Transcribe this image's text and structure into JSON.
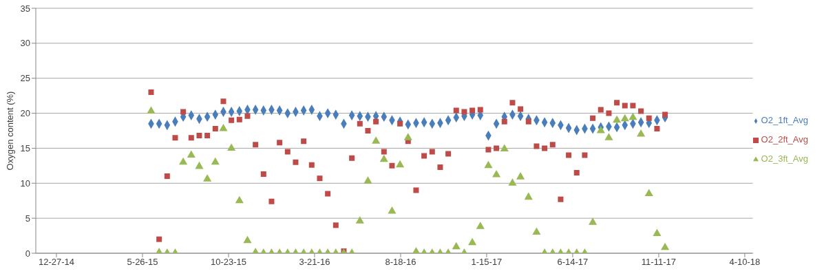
{
  "chart_data": {
    "type": "scatter",
    "ylabel": "Oxygen content (%)",
    "ylim": [
      0,
      35
    ],
    "yticks": [
      0,
      5,
      10,
      15,
      20,
      25,
      30,
      35
    ],
    "xlim": [
      "2014-11-21",
      "2018-04-24"
    ],
    "xticks": [
      {
        "value": "2014-12-27",
        "label": "12-27-14"
      },
      {
        "value": "2015-05-26",
        "label": "5-26-15"
      },
      {
        "value": "2015-10-23",
        "label": "10-23-15"
      },
      {
        "value": "2016-03-21",
        "label": "3-21-16"
      },
      {
        "value": "2016-08-18",
        "label": "8-18-16"
      },
      {
        "value": "2017-01-15",
        "label": "1-15-17"
      },
      {
        "value": "2017-06-14",
        "label": "6-14-17"
      },
      {
        "value": "2017-11-11",
        "label": "11-11-17"
      },
      {
        "value": "2018-04-10",
        "label": "4-10-18"
      }
    ],
    "grid": "y",
    "legend": "right",
    "x": [
      "2015-06-10",
      "2015-06-24",
      "2015-07-08",
      "2015-07-22",
      "2015-08-05",
      "2015-08-19",
      "2015-09-02",
      "2015-09-16",
      "2015-09-30",
      "2015-10-14",
      "2015-10-28",
      "2015-11-11",
      "2015-11-25",
      "2015-12-09",
      "2015-12-23",
      "2016-01-06",
      "2016-01-20",
      "2016-02-03",
      "2016-02-17",
      "2016-03-02",
      "2016-03-16",
      "2016-03-30",
      "2016-04-13",
      "2016-04-27",
      "2016-05-11",
      "2016-05-25",
      "2016-06-08",
      "2016-06-22",
      "2016-07-06",
      "2016-07-20",
      "2016-08-03",
      "2016-08-17",
      "2016-08-31",
      "2016-09-14",
      "2016-09-28",
      "2016-10-12",
      "2016-10-26",
      "2016-11-09",
      "2016-11-23",
      "2016-12-07",
      "2016-12-21",
      "2017-01-04",
      "2017-01-18",
      "2017-02-01",
      "2017-02-15",
      "2017-03-01",
      "2017-03-15",
      "2017-03-29",
      "2017-04-12",
      "2017-04-26",
      "2017-05-10",
      "2017-05-24",
      "2017-06-07",
      "2017-06-21",
      "2017-07-05",
      "2017-07-19",
      "2017-08-02",
      "2017-08-16",
      "2017-08-30",
      "2017-09-13",
      "2017-09-27",
      "2017-10-11",
      "2017-10-25",
      "2017-11-08",
      "2017-11-22"
    ],
    "series": [
      {
        "name": "O2_1ft_Avg",
        "color": "#4a7ebb",
        "marker": "diamond",
        "values": [
          18.5,
          18.5,
          18.3,
          18.8,
          19.5,
          19.7,
          19.2,
          19.5,
          19.8,
          20.2,
          20.2,
          20.3,
          20.5,
          20.5,
          20.4,
          20.5,
          20.4,
          20.0,
          20.2,
          20.4,
          20.5,
          19.6,
          20.0,
          19.8,
          18.5,
          19.7,
          19.6,
          19.5,
          19.6,
          19.5,
          19.0,
          18.8,
          18.4,
          18.6,
          18.7,
          18.5,
          18.6,
          19.0,
          19.4,
          19.6,
          19.8,
          19.7,
          16.8,
          18.5,
          19.5,
          19.8,
          19.6,
          19.2,
          19.0,
          18.7,
          18.6,
          18.3,
          17.9,
          17.6,
          17.8,
          17.8,
          18.0,
          18.1,
          18.0,
          18.3,
          18.5,
          18.7,
          18.6,
          19.0,
          19.4
        ]
      },
      {
        "name": "O2_2ft_Avg",
        "color": "#be4b48",
        "marker": "square",
        "values": [
          23.0,
          2.0,
          11.0,
          16.5,
          20.2,
          16.5,
          16.8,
          16.8,
          17.8,
          21.7,
          19.0,
          19.1,
          19.6,
          15.5,
          11.3,
          7.4,
          15.8,
          14.5,
          13.0,
          16.0,
          12.6,
          10.7,
          8.5,
          4.0,
          0.3,
          13.6,
          18.5,
          17.5,
          18.8,
          14.5,
          12.5,
          18.5,
          16.0,
          9.0,
          13.9,
          14.5,
          12.3,
          14.2,
          20.4,
          20.2,
          20.4,
          20.5,
          14.8,
          15.0,
          18.8,
          21.5,
          20.6,
          18.8,
          15.3,
          15.0,
          15.5,
          7.7,
          14.0,
          11.5,
          14.0,
          19.3,
          20.5,
          20.0,
          21.5,
          21.1,
          21.1,
          20.3,
          19.3,
          17.8,
          19.8
        ]
      },
      {
        "name": "O2_3ft_Avg",
        "color": "#98b954",
        "marker": "triangle",
        "values": [
          20.3,
          0.1,
          0,
          0,
          13.0,
          14.0,
          12.4,
          10.6,
          13.0,
          17.8,
          15.0,
          7.5,
          1.8,
          0.1,
          0,
          0,
          0,
          0,
          0,
          0,
          0,
          0,
          0,
          0,
          0,
          0,
          4.6,
          10.3,
          16.0,
          13.4,
          6.0,
          12.6,
          16.5,
          0.2,
          0,
          0,
          0,
          0,
          0.9,
          0,
          1.5,
          3.8,
          12.5,
          11.2,
          14.9,
          10.0,
          10.9,
          8.0,
          3.0,
          0,
          0,
          0,
          0,
          0,
          0,
          4.4,
          17.5,
          16.5,
          19.0,
          19.2,
          19.4,
          17.0,
          8.5,
          2.8,
          0.8
        ]
      }
    ]
  }
}
